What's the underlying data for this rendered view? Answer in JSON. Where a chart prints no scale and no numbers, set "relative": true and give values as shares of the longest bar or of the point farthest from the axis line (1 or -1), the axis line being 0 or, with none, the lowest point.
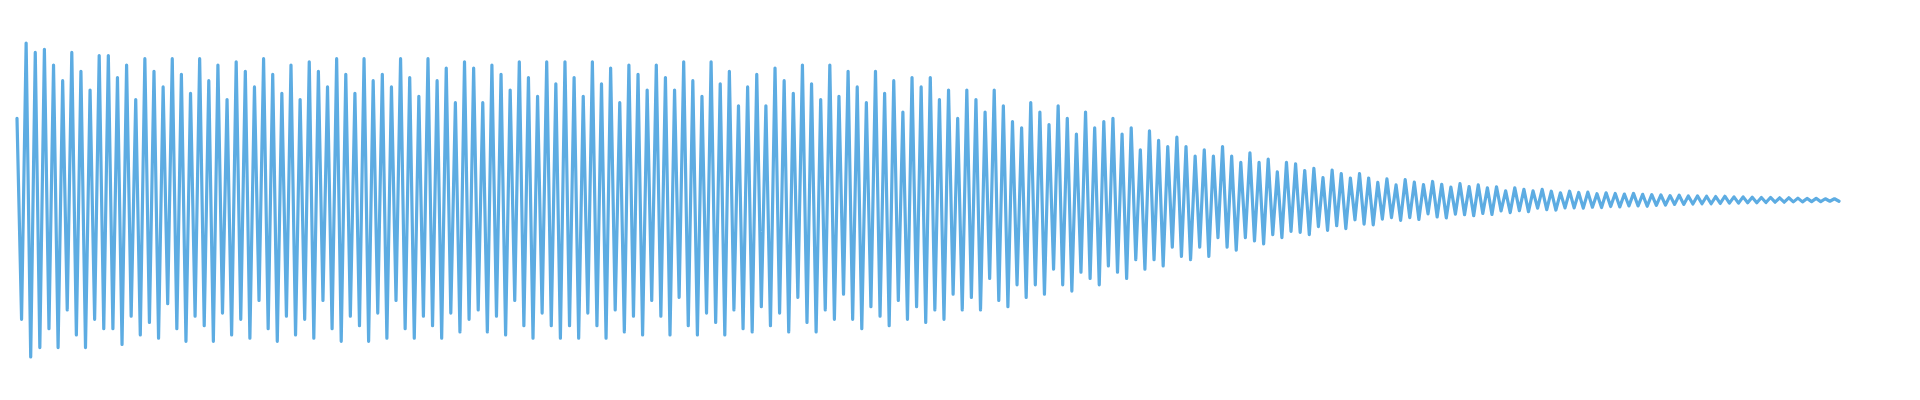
{
  "chart_data": {
    "type": "line",
    "relative": true,
    "categories": [
      null,
      null,
      null,
      null,
      null,
      null,
      null,
      null,
      null,
      null,
      null,
      null,
      null,
      null,
      null,
      null,
      null,
      null,
      null,
      null,
      null,
      null,
      null,
      null,
      null,
      null,
      null,
      null,
      null,
      null,
      null,
      null,
      null,
      null,
      null,
      null,
      null,
      null,
      null,
      null,
      null,
      null,
      null,
      null,
      null,
      null,
      null,
      null,
      null,
      null,
      null,
      null,
      null,
      null,
      null,
      null,
      null,
      null,
      null,
      null,
      null,
      null,
      null,
      null,
      null,
      null,
      null,
      null,
      null,
      null,
      null,
      null,
      null,
      null,
      null,
      null,
      null,
      null,
      null,
      null,
      null,
      null,
      null,
      null,
      null,
      null,
      null,
      null,
      null,
      null,
      null,
      null,
      null,
      null,
      null,
      null,
      null,
      null,
      null,
      null,
      null,
      null,
      null,
      null,
      null,
      null,
      null,
      null,
      null,
      null,
      null,
      null,
      null,
      null,
      null,
      null,
      null,
      null,
      null,
      null,
      null,
      null,
      null,
      null,
      null,
      null,
      null,
      null,
      null,
      null,
      null,
      null,
      null,
      null,
      null,
      null,
      null,
      null,
      null,
      null,
      null,
      null,
      null,
      null,
      null,
      null,
      null,
      null,
      null,
      null,
      null,
      null,
      null,
      null,
      null,
      null,
      null,
      null,
      null,
      null,
      null,
      null,
      null,
      null,
      null,
      null,
      null,
      null,
      null,
      null,
      null,
      null,
      null,
      null,
      null,
      null,
      null,
      null,
      null,
      null,
      null,
      null,
      null,
      null,
      null,
      null,
      null,
      null,
      null,
      null,
      null,
      null,
      null,
      null,
      null,
      null,
      null,
      null,
      null,
      null,
      null,
      null,
      null,
      null,
      null,
      null,
      null,
      null,
      null,
      null,
      null,
      null,
      null,
      null,
      null,
      null,
      null,
      null,
      null,
      null,
      null,
      null,
      null,
      null,
      null,
      null,
      null,
      null,
      null,
      null,
      null,
      null,
      null,
      null,
      null,
      null,
      null,
      null,
      null,
      null,
      null,
      null,
      null,
      null,
      null,
      null,
      null,
      null,
      null,
      null,
      null,
      null,
      null,
      null,
      null,
      null,
      null,
      null,
      null,
      null,
      null,
      null,
      null,
      null,
      null,
      null,
      null,
      null,
      null,
      null,
      null,
      null,
      null,
      null,
      null,
      null,
      null,
      null,
      null,
      null,
      null,
      null,
      null,
      null,
      null,
      null,
      null,
      null,
      null,
      null,
      null,
      null,
      null,
      null,
      null,
      null,
      null,
      null,
      null,
      null,
      null,
      null,
      null,
      null,
      null,
      null,
      null,
      null,
      null,
      null,
      null,
      null,
      null,
      null,
      null,
      null,
      null,
      null,
      null,
      null,
      null,
      null,
      null,
      null,
      null,
      null,
      null,
      null,
      null,
      null,
      null,
      null,
      null,
      null,
      null,
      null,
      null,
      null,
      null,
      null,
      null,
      null,
      null,
      null,
      null,
      null,
      null,
      null,
      null,
      null,
      null,
      null,
      null,
      null,
      null,
      null,
      null,
      null,
      null,
      null,
      null,
      null,
      null,
      null,
      null,
      null,
      null,
      null,
      null,
      null,
      null,
      null,
      null,
      null,
      null,
      null,
      null,
      null,
      null,
      null,
      null,
      null,
      null,
      null,
      null,
      null,
      null,
      null,
      null,
      null,
      null,
      null,
      null,
      null,
      null,
      null,
      null,
      null,
      null,
      null
    ],
    "series": [
      {
        "color": "#5dace2",
        "values": [
          0.76,
          0.12,
          1.0,
          0.0,
          0.97,
          0.03,
          0.98,
          0.09,
          0.93,
          0.03,
          0.88,
          0.15,
          0.97,
          0.07,
          0.91,
          0.03,
          0.85,
          0.12,
          0.96,
          0.09,
          0.96,
          0.09,
          0.89,
          0.04,
          0.93,
          0.13,
          0.82,
          0.07,
          0.95,
          0.11,
          0.91,
          0.06,
          0.86,
          0.17,
          0.95,
          0.09,
          0.9,
          0.05,
          0.84,
          0.13,
          0.95,
          0.1,
          0.88,
          0.05,
          0.93,
          0.14,
          0.82,
          0.07,
          0.94,
          0.12,
          0.91,
          0.06,
          0.86,
          0.18,
          0.95,
          0.09,
          0.9,
          0.05,
          0.84,
          0.13,
          0.93,
          0.07,
          0.82,
          0.12,
          0.94,
          0.06,
          0.91,
          0.18,
          0.86,
          0.09,
          0.95,
          0.05,
          0.9,
          0.13,
          0.84,
          0.1,
          0.95,
          0.05,
          0.88,
          0.14,
          0.9,
          0.06,
          0.86,
          0.18,
          0.95,
          0.09,
          0.89,
          0.06,
          0.83,
          0.13,
          0.95,
          0.1,
          0.88,
          0.06,
          0.92,
          0.14,
          0.81,
          0.08,
          0.94,
          0.12,
          0.92,
          0.15,
          0.81,
          0.08,
          0.93,
          0.13,
          0.9,
          0.07,
          0.85,
          0.18,
          0.94,
          0.1,
          0.89,
          0.06,
          0.83,
          0.14,
          0.94,
          0.1,
          0.87,
          0.06,
          0.94,
          0.1,
          0.89,
          0.06,
          0.83,
          0.14,
          0.94,
          0.1,
          0.87,
          0.06,
          0.92,
          0.15,
          0.81,
          0.08,
          0.93,
          0.13,
          0.9,
          0.07,
          0.85,
          0.18,
          0.93,
          0.13,
          0.89,
          0.07,
          0.85,
          0.19,
          0.94,
          0.1,
          0.88,
          0.07,
          0.83,
          0.14,
          0.94,
          0.11,
          0.87,
          0.07,
          0.91,
          0.15,
          0.8,
          0.09,
          0.86,
          0.08,
          0.9,
          0.16,
          0.8,
          0.1,
          0.92,
          0.14,
          0.88,
          0.08,
          0.84,
          0.19,
          0.93,
          0.11,
          0.87,
          0.08,
          0.82,
          0.15,
          0.93,
          0.12,
          0.83,
          0.2,
          0.91,
          0.12,
          0.86,
          0.09,
          0.81,
          0.16,
          0.91,
          0.13,
          0.84,
          0.1,
          0.88,
          0.18,
          0.78,
          0.12,
          0.89,
          0.16,
          0.86,
          0.11,
          0.89,
          0.15,
          0.82,
          0.12,
          0.85,
          0.2,
          0.76,
          0.15,
          0.85,
          0.19,
          0.82,
          0.15,
          0.78,
          0.25,
          0.85,
          0.18,
          0.8,
          0.16,
          0.75,
          0.23,
          0.73,
          0.19,
          0.81,
          0.23,
          0.78,
          0.2,
          0.74,
          0.28,
          0.8,
          0.23,
          0.76,
          0.21,
          0.71,
          0.27,
          0.78,
          0.25,
          0.73,
          0.23,
          0.75,
          0.29,
          0.76,
          0.27,
          0.71,
          0.25,
          0.73,
          0.31,
          0.66,
          0.28,
          0.72,
          0.31,
          0.69,
          0.29,
          0.67,
          0.35,
          0.7,
          0.32,
          0.67,
          0.31,
          0.64,
          0.35,
          0.66,
          0.32,
          0.64,
          0.38,
          0.67,
          0.35,
          0.64,
          0.34,
          0.62,
          0.38,
          0.65,
          0.37,
          0.62,
          0.36,
          0.63,
          0.39,
          0.59,
          0.38,
          0.62,
          0.4,
          0.615,
          0.397,
          0.594,
          0.39,
          0.601,
          0.415,
          0.571,
          0.403,
          0.595,
          0.418,
          0.584,
          0.409,
          0.57,
          0.437,
          0.584,
          0.423,
          0.57,
          0.421,
          0.556,
          0.439,
          0.567,
          0.444,
          0.548,
          0.435,
          0.565,
          0.444,
          0.557,
          0.438,
          0.549,
          0.456,
          0.559,
          0.446,
          0.55,
          0.443,
          0.541,
          0.455,
          0.552,
          0.453,
          0.543,
          0.45,
          0.548,
          0.457,
          0.539,
          0.454,
          0.542,
          0.465,
          0.529,
          0.46,
          0.539,
          0.466,
          0.534,
          0.463,
          0.529,
          0.474,
          0.534,
          0.469,
          0.528,
          0.468,
          0.523,
          0.475,
          0.528,
          0.475,
          0.524,
          0.474,
          0.525,
          0.477,
          0.52,
          0.476,
          0.523,
          0.479,
          0.521,
          0.478,
          0.519,
          0.481,
          0.521,
          0.481,
          0.518,
          0.48,
          0.517,
          0.483,
          0.516,
          0.484,
          0.514,
          0.486,
          0.515,
          0.486,
          0.513,
          0.487,
          0.513,
          0.488,
          0.512,
          0.488,
          0.511,
          0.489,
          0.512,
          0.49,
          0.51,
          0.49,
          0.51,
          0.491,
          0.509,
          0.491,
          0.508,
          0.492,
          0.508,
          0.493,
          0.507,
          0.493,
          0.507,
          0.494,
          0.506,
          0.494,
          0.505,
          0.495,
          0.505,
          0.495,
          0.504,
          0.496,
          0.504,
          0.496
        ]
      }
    ]
  }
}
